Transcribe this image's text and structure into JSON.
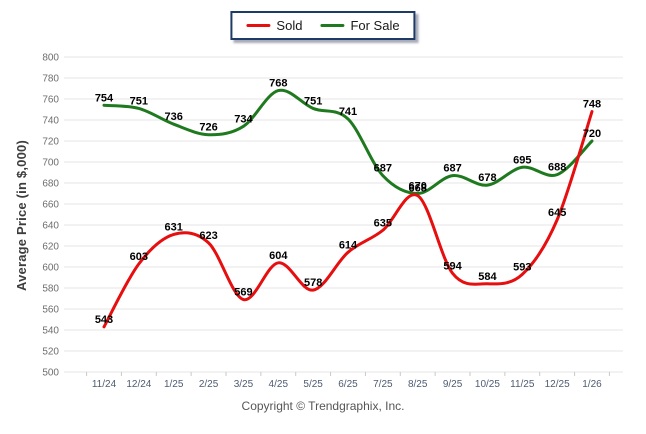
{
  "footer": {
    "copyright": "Copyright © Trendgraphix, Inc."
  },
  "chart_data": {
    "type": "line",
    "title": "",
    "xlabel": "",
    "ylabel": "Average Price (in $,000)",
    "categories": [
      "11/24",
      "12/24",
      "1/25",
      "2/25",
      "3/25",
      "4/25",
      "5/25",
      "6/25",
      "7/25",
      "8/25",
      "9/25",
      "10/25",
      "11/25",
      "12/25",
      "1/26"
    ],
    "series": [
      {
        "name": "Sold",
        "color": "#e60e0e",
        "values": [
          543,
          603,
          631,
          623,
          569,
          604,
          578,
          614,
          635,
          668,
          594,
          584,
          593,
          645,
          748
        ]
      },
      {
        "name": "For Sale",
        "color": "#1f7a1f",
        "values": [
          754,
          751,
          736,
          726,
          734,
          768,
          751,
          741,
          687,
          670,
          687,
          678,
          695,
          688,
          720
        ]
      }
    ],
    "ylim": [
      500,
      800
    ],
    "yticks": [
      800,
      780,
      760,
      740,
      720,
      700,
      680,
      660,
      640,
      620,
      600,
      580,
      560,
      540,
      520,
      500
    ],
    "grid": true,
    "smooth": true,
    "data_labels": true,
    "legend_position": "top-center",
    "colors": {
      "gridline": "#e4e4e4",
      "x_tick": "#c9c9c9",
      "y_label": "#6e6e6e",
      "x_label": "#4e5b73",
      "data_label": "#000000"
    }
  }
}
